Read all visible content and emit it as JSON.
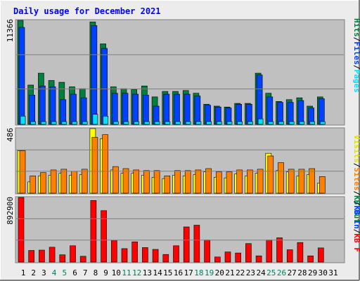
{
  "title": "Daily usage for December 2021",
  "colors": {
    "outer_bg": "#ececec",
    "plot_bg": "#c0c0c0",
    "title": "#0000ff",
    "hits": "#008040",
    "files": "#0040ff",
    "pages": "#00e0ff",
    "visits": "#ffff00",
    "sites": "#ff8000",
    "kb": "#ff0000",
    "weekend_label": "#00805c",
    "weekday_label": "#000000"
  },
  "legend_top": [
    "Hits",
    "Files",
    "Pages"
  ],
  "legend_mid": [
    "Visits",
    "Sites",
    "KB Out"
  ],
  "legend_bot": [
    "KB In",
    "KB F"
  ],
  "chart_data": [
    {
      "type": "bar",
      "name": "hits-files-pages",
      "ymax_label": "11366",
      "ylim": [
        0,
        11366
      ],
      "categories": [
        "1",
        "2",
        "3",
        "4",
        "5",
        "6",
        "7",
        "8",
        "9",
        "10",
        "11",
        "12",
        "13",
        "14",
        "15",
        "16",
        "17",
        "18",
        "19",
        "20",
        "21",
        "22",
        "23",
        "24",
        "25",
        "26",
        "27",
        "28",
        "29",
        "30",
        "31"
      ],
      "weekend_days": [
        4,
        5,
        11,
        12,
        18,
        19,
        25,
        26
      ],
      "series": [
        {
          "name": "Hits",
          "values": [
            11366,
            4300,
            5600,
            4800,
            4600,
            4100,
            3900,
            11200,
            8800,
            4100,
            3900,
            3800,
            4200,
            3000,
            3600,
            3600,
            3700,
            3400,
            2200,
            2000,
            1900,
            2300,
            2300,
            5600,
            3400,
            2500,
            2700,
            2900,
            2000,
            3000,
            0
          ]
        },
        {
          "name": "Files",
          "values": [
            10600,
            3200,
            4200,
            4100,
            2700,
            3300,
            2900,
            10800,
            8300,
            3400,
            3400,
            3300,
            3200,
            2000,
            3300,
            3300,
            3300,
            3100,
            2100,
            1900,
            1800,
            2200,
            2200,
            5400,
            3000,
            2400,
            2400,
            2600,
            1800,
            2800,
            0
          ]
        },
        {
          "name": "Pages",
          "values": [
            900,
            300,
            300,
            300,
            300,
            300,
            300,
            1100,
            900,
            300,
            300,
            300,
            300,
            300,
            300,
            300,
            300,
            300,
            300,
            300,
            300,
            300,
            300,
            600,
            300,
            300,
            300,
            300,
            300,
            300,
            0
          ]
        }
      ]
    },
    {
      "type": "bar",
      "name": "visits-sites",
      "ymax_label": "486",
      "ylim": [
        0,
        486
      ],
      "categories": [
        "1",
        "2",
        "3",
        "4",
        "5",
        "6",
        "7",
        "8",
        "9",
        "10",
        "11",
        "12",
        "13",
        "14",
        "15",
        "16",
        "17",
        "18",
        "19",
        "20",
        "21",
        "22",
        "23",
        "24",
        "25",
        "26",
        "27",
        "28",
        "29",
        "30",
        "31"
      ],
      "series": [
        {
          "name": "Visits",
          "values": [
            320,
            85,
            130,
            135,
            150,
            135,
            140,
            486,
            410,
            175,
            150,
            150,
            135,
            120,
            110,
            135,
            130,
            140,
            160,
            120,
            115,
            145,
            130,
            150,
            300,
            170,
            160,
            130,
            140,
            75,
            0
          ]
        },
        {
          "name": "Sites",
          "values": [
            320,
            130,
            155,
            175,
            180,
            165,
            180,
            420,
            440,
            200,
            185,
            175,
            170,
            170,
            130,
            170,
            170,
            175,
            185,
            160,
            160,
            175,
            175,
            180,
            280,
            230,
            180,
            180,
            185,
            125,
            0
          ]
        }
      ]
    },
    {
      "type": "bar",
      "name": "kb-f",
      "ymax_label": "892900",
      "ylim": [
        0,
        892900
      ],
      "categories": [
        "1",
        "2",
        "3",
        "4",
        "5",
        "6",
        "7",
        "8",
        "9",
        "10",
        "11",
        "12",
        "13",
        "14",
        "15",
        "16",
        "17",
        "18",
        "19",
        "20",
        "21",
        "22",
        "23",
        "24",
        "25",
        "26",
        "27",
        "28",
        "29",
        "30",
        "31"
      ],
      "series": [
        {
          "name": "KB F",
          "values": [
            892900,
            160000,
            165000,
            205000,
            100000,
            225000,
            80000,
            850000,
            710000,
            300000,
            185000,
            280000,
            200000,
            175000,
            105000,
            225000,
            485000,
            510000,
            305000,
            70000,
            140000,
            125000,
            255000,
            85000,
            305000,
            335000,
            170000,
            270000,
            85000,
            195000,
            0
          ]
        }
      ]
    }
  ]
}
